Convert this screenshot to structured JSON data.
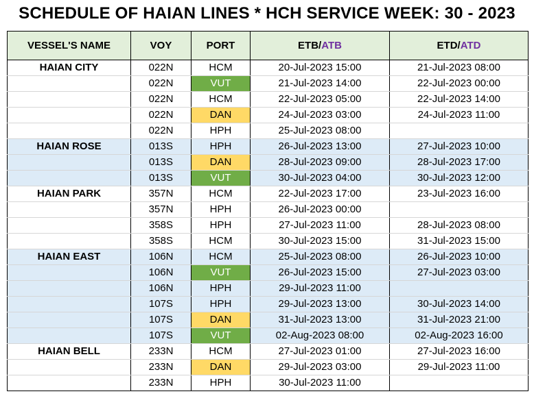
{
  "title": "SCHEDULE OF HAIAN LINES * HCH SERVICE WEEK: 30 - 2023",
  "headers": {
    "vessel": "VESSEL'S NAME",
    "voy": "VOY",
    "port": "PORT",
    "etb": "ETB/",
    "atb": "ATB",
    "etd": "ETD/",
    "atd": "ATD"
  },
  "colors": {
    "header_bg": "#e2efda",
    "band_bg": "#ddebf7",
    "vut": "#70ad47",
    "dan": "#ffd966",
    "accent": "#7030a0"
  },
  "rows": [
    {
      "vessel": "HAIAN CITY",
      "voy": "022N",
      "port": "HCM",
      "etb": "20-Jul-2023 15:00",
      "etd": "21-Jul-2023 08:00"
    },
    {
      "vessel": "",
      "voy": "022N",
      "port": "VUT",
      "etb": "21-Jul-2023 14:00",
      "etd": "22-Jul-2023 00:00"
    },
    {
      "vessel": "",
      "voy": "022N",
      "port": "HCM",
      "etb": "22-Jul-2023 05:00",
      "etd": "22-Jul-2023 14:00"
    },
    {
      "vessel": "",
      "voy": "022N",
      "port": "DAN",
      "etb": "24-Jul-2023 03:00",
      "etd": "24-Jul-2023 11:00"
    },
    {
      "vessel": "",
      "voy": "022N",
      "port": "HPH",
      "etb": "25-Jul-2023 08:00",
      "etd": ""
    },
    {
      "vessel": "HAIAN ROSE",
      "voy": "013S",
      "port": "HPH",
      "etb": "26-Jul-2023 13:00",
      "etd": "27-Jul-2023 10:00"
    },
    {
      "vessel": "",
      "voy": "013S",
      "port": "DAN",
      "etb": "28-Jul-2023 09:00",
      "etd": "28-Jul-2023 17:00"
    },
    {
      "vessel": "",
      "voy": "013S",
      "port": "VUT",
      "etb": "30-Jul-2023 04:00",
      "etd": "30-Jul-2023 12:00"
    },
    {
      "vessel": "HAIAN PARK",
      "voy": "357N",
      "port": "HCM",
      "etb": "22-Jul-2023 17:00",
      "etd": "23-Jul-2023 16:00"
    },
    {
      "vessel": "",
      "voy": "357N",
      "port": "HPH",
      "etb": "26-Jul-2023 00:00",
      "etd": ""
    },
    {
      "vessel": "",
      "voy": "358S",
      "port": "HPH",
      "etb": "27-Jul-2023 11:00",
      "etd": "28-Jul-2023 08:00"
    },
    {
      "vessel": "",
      "voy": "358S",
      "port": "HCM",
      "etb": "30-Jul-2023 15:00",
      "etd": "31-Jul-2023 15:00"
    },
    {
      "vessel": "HAIAN EAST",
      "voy": "106N",
      "port": "HCM",
      "etb": "25-Jul-2023 08:00",
      "etd": "26-Jul-2023 10:00"
    },
    {
      "vessel": "",
      "voy": "106N",
      "port": "VUT",
      "etb": "26-Jul-2023 15:00",
      "etd": "27-Jul-2023 03:00"
    },
    {
      "vessel": "",
      "voy": "106N",
      "port": "HPH",
      "etb": "29-Jul-2023 11:00",
      "etd": ""
    },
    {
      "vessel": "",
      "voy": "107S",
      "port": "HPH",
      "etb": "29-Jul-2023 13:00",
      "etd": "30-Jul-2023 14:00"
    },
    {
      "vessel": "",
      "voy": "107S",
      "port": "DAN",
      "etb": "31-Jul-2023 13:00",
      "etd": "31-Jul-2023 21:00"
    },
    {
      "vessel": "",
      "voy": "107S",
      "port": "VUT",
      "etb": "02-Aug-2023 08:00",
      "etd": "02-Aug-2023 16:00"
    },
    {
      "vessel": "HAIAN BELL",
      "voy": "233N",
      "port": "HCM",
      "etb": "27-Jul-2023 01:00",
      "etd": "27-Jul-2023 16:00"
    },
    {
      "vessel": "",
      "voy": "233N",
      "port": "DAN",
      "etb": "29-Jul-2023 03:00",
      "etd": "29-Jul-2023 11:00"
    },
    {
      "vessel": "",
      "voy": "233N",
      "port": "HPH",
      "etb": "30-Jul-2023 11:00",
      "etd": ""
    }
  ]
}
